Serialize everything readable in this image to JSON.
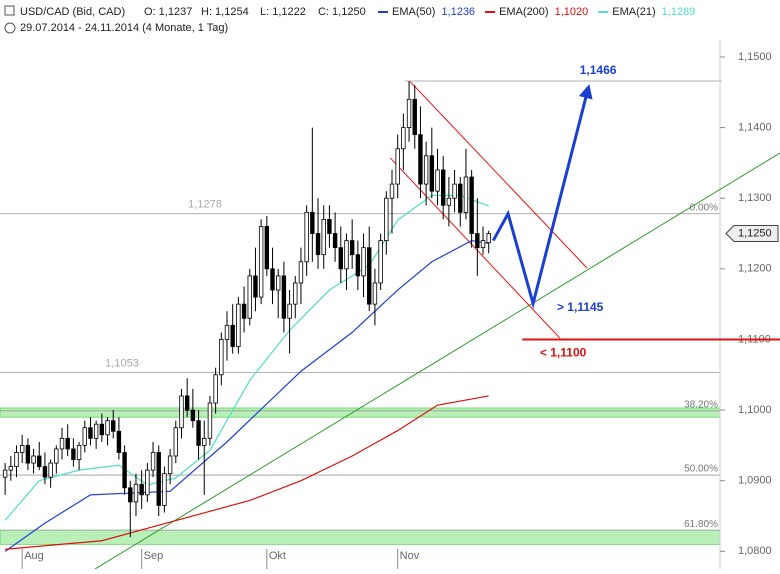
{
  "chart_data": {
    "type": "candlestick",
    "header": {
      "symbol": "USD/CAD (Bid, CAD)",
      "open": "O: 1,1237",
      "high": "H: 1,1254",
      "low": "L: 1,1222",
      "close": "C: 1,1250",
      "period": "29.07.2014 - 24.11.2014 (4 Monate, 1 Tag)"
    },
    "xlim": [
      -0.9,
      136.2
    ],
    "ylim": [
      1.0775,
      1.1524
    ],
    "xticks": [
      {
        "value": 3,
        "label": "Aug"
      },
      {
        "value": 24,
        "label": "Sep"
      },
      {
        "value": 46,
        "label": "Okt"
      },
      {
        "value": 69,
        "label": "Nov"
      }
    ],
    "yticks": [
      {
        "value": 1.15,
        "label": "1,1500"
      },
      {
        "value": 1.14,
        "label": "1,1400"
      },
      {
        "value": 1.13,
        "label": "1,1300"
      },
      {
        "value": 1.12,
        "label": "1,1200"
      },
      {
        "value": 1.11,
        "label": "1,1100"
      },
      {
        "value": 1.1,
        "label": "1,1000"
      },
      {
        "value": 1.09,
        "label": "1,0900"
      },
      {
        "value": 1.08,
        "label": "1,0800"
      }
    ],
    "candles": [
      [
        1.0905,
        1.0925,
        1.088,
        1.0915
      ],
      [
        1.0915,
        1.0935,
        1.09,
        1.092
      ],
      [
        1.092,
        1.095,
        1.0905,
        1.094
      ],
      [
        1.094,
        1.0965,
        1.0925,
        1.095
      ],
      [
        1.095,
        1.096,
        1.0915,
        1.0925
      ],
      [
        1.0925,
        1.0945,
        1.091,
        1.0935
      ],
      [
        1.0935,
        1.0955,
        1.0915,
        1.092
      ],
      [
        1.092,
        1.094,
        1.0895,
        1.0905
      ],
      [
        1.0905,
        1.093,
        1.089,
        1.0925
      ],
      [
        1.0925,
        1.095,
        1.091,
        1.0945
      ],
      [
        1.0945,
        1.0975,
        1.093,
        1.096
      ],
      [
        1.096,
        1.098,
        1.0935,
        1.0945
      ],
      [
        1.0945,
        1.096,
        1.092,
        1.093
      ],
      [
        1.093,
        1.0955,
        1.0915,
        1.095
      ],
      [
        1.095,
        1.0985,
        1.094,
        1.0975
      ],
      [
        1.0975,
        1.099,
        1.095,
        1.096
      ],
      [
        1.096,
        1.0985,
        1.0945,
        1.098
      ],
      [
        1.098,
        1.0995,
        1.0955,
        1.0965
      ],
      [
        1.0965,
        1.099,
        1.095,
        1.0985
      ],
      [
        1.0985,
        1.1,
        1.096,
        1.097
      ],
      [
        1.097,
        1.099,
        1.093,
        1.094
      ],
      [
        1.094,
        1.095,
        1.088,
        1.089
      ],
      [
        1.089,
        1.09,
        1.082,
        1.087
      ],
      [
        1.087,
        1.091,
        1.085,
        1.0895
      ],
      [
        1.0895,
        1.0915,
        1.086,
        1.088
      ],
      [
        1.088,
        1.0925,
        1.087,
        1.0915
      ],
      [
        1.0915,
        1.0955,
        1.0905,
        1.094
      ],
      [
        1.094,
        1.095,
        1.085,
        1.0865
      ],
      [
        1.0865,
        1.092,
        1.0855,
        1.091
      ],
      [
        1.091,
        1.0945,
        1.0895,
        1.0935
      ],
      [
        1.0935,
        1.0985,
        1.0925,
        1.0975
      ],
      [
        1.0975,
        1.103,
        1.096,
        1.102
      ],
      [
        1.102,
        1.1045,
        1.099,
        1.1
      ],
      [
        1.1,
        1.103,
        1.0975,
        1.0985
      ],
      [
        1.0985,
        1.1,
        1.093,
        1.095
      ],
      [
        1.095,
        1.0985,
        1.088,
        1.096
      ],
      [
        1.096,
        1.102,
        1.095,
        1.101
      ],
      [
        1.101,
        1.106,
        1.0995,
        1.105
      ],
      [
        1.105,
        1.111,
        1.1035,
        1.11
      ],
      [
        1.11,
        1.114,
        1.107,
        1.112
      ],
      [
        1.112,
        1.115,
        1.108,
        1.109
      ],
      [
        1.109,
        1.116,
        1.108,
        1.115
      ],
      [
        1.115,
        1.1175,
        1.111,
        1.113
      ],
      [
        1.113,
        1.12,
        1.112,
        1.119
      ],
      [
        1.119,
        1.123,
        1.114,
        1.116
      ],
      [
        1.116,
        1.127,
        1.115,
        1.126
      ],
      [
        1.126,
        1.1275,
        1.119,
        1.12
      ],
      [
        1.12,
        1.123,
        1.115,
        1.117
      ],
      [
        1.117,
        1.12,
        1.113,
        1.119
      ],
      [
        1.119,
        1.121,
        1.111,
        1.113
      ],
      [
        1.113,
        1.117,
        1.108,
        1.115
      ],
      [
        1.115,
        1.119,
        1.113,
        1.118
      ],
      [
        1.118,
        1.123,
        1.115,
        1.121
      ],
      [
        1.121,
        1.129,
        1.119,
        1.128
      ],
      [
        1.128,
        1.14,
        1.121,
        1.125
      ],
      [
        1.125,
        1.13,
        1.12,
        1.122
      ],
      [
        1.122,
        1.129,
        1.12,
        1.127
      ],
      [
        1.127,
        1.129,
        1.123,
        1.125
      ],
      [
        1.125,
        1.128,
        1.121,
        1.123
      ],
      [
        1.123,
        1.126,
        1.118,
        1.12
      ],
      [
        1.12,
        1.125,
        1.117,
        1.124
      ],
      [
        1.124,
        1.127,
        1.12,
        1.122
      ],
      [
        1.122,
        1.124,
        1.117,
        1.119
      ],
      [
        1.119,
        1.125,
        1.116,
        1.123
      ],
      [
        1.123,
        1.126,
        1.114,
        1.115
      ],
      [
        1.115,
        1.12,
        1.112,
        1.118
      ],
      [
        1.118,
        1.125,
        1.117,
        1.124
      ],
      [
        1.124,
        1.131,
        1.122,
        1.13
      ],
      [
        1.13,
        1.134,
        1.125,
        1.132
      ],
      [
        1.132,
        1.139,
        1.13,
        1.137
      ],
      [
        1.137,
        1.142,
        1.134,
        1.14
      ],
      [
        1.14,
        1.1466,
        1.138,
        1.144
      ],
      [
        1.144,
        1.146,
        1.137,
        1.139
      ],
      [
        1.139,
        1.143,
        1.13,
        1.132
      ],
      [
        1.132,
        1.138,
        1.129,
        1.136
      ],
      [
        1.136,
        1.14,
        1.13,
        1.131
      ],
      [
        1.131,
        1.137,
        1.129,
        1.134
      ],
      [
        1.134,
        1.136,
        1.127,
        1.129
      ],
      [
        1.129,
        1.133,
        1.126,
        1.13
      ],
      [
        1.13,
        1.134,
        1.128,
        1.132
      ],
      [
        1.132,
        1.133,
        1.126,
        1.128
      ],
      [
        1.128,
        1.137,
        1.127,
        1.133
      ],
      [
        1.133,
        1.134,
        1.123,
        1.125
      ],
      [
        1.125,
        1.13,
        1.119,
        1.123
      ],
      [
        1.123,
        1.126,
        1.122,
        1.124
      ],
      [
        1.1237,
        1.1254,
        1.1222,
        1.125
      ]
    ],
    "candle_colors": {
      "up": "#ffffff",
      "down": "#000000",
      "outline": "#000000"
    },
    "series": [
      {
        "name": "EMA(50)",
        "value_label": "1,1236",
        "color": "#1f3fd8",
        "x": [
          0,
          7,
          15,
          29,
          39,
          52,
          61,
          69,
          75,
          82,
          85
        ],
        "values": [
          1.08,
          1.084,
          1.088,
          1.0885,
          1.0955,
          1.1055,
          1.111,
          1.117,
          1.121,
          1.124,
          1.1236
        ]
      },
      {
        "name": "EMA(200)",
        "value_label": "1,1020",
        "color": "#e01010",
        "x": [
          0,
          17,
          27,
          43,
          52,
          61,
          69,
          76,
          85
        ],
        "values": [
          1.0803,
          1.0815,
          1.0837,
          1.0872,
          1.09,
          1.0935,
          1.0971,
          1.1007,
          1.102
        ]
      },
      {
        "name": "EMA(21)",
        "value_label": "1,1289",
        "color": "#4fe0c8",
        "x": [
          0,
          6,
          13,
          20,
          25,
          30,
          36,
          43,
          50,
          57,
          64,
          69,
          75,
          80,
          85
        ],
        "values": [
          1.0844,
          1.09,
          1.0915,
          1.0922,
          1.0894,
          1.0904,
          1.0943,
          1.1042,
          1.1113,
          1.117,
          1.1205,
          1.1269,
          1.1304,
          1.1304,
          1.1289
        ]
      }
    ],
    "hlines": [
      {
        "value": 1.1278,
        "label": "1,1278",
        "fib": "0.00%"
      },
      {
        "value": 1.1053,
        "label": "1,1053"
      },
      {
        "value": 1.0999,
        "fib": "38.20%"
      },
      {
        "value": 1.0908,
        "fib": "50.00%"
      },
      {
        "value": 1.083,
        "fib": "61.80%"
      }
    ],
    "zones": [
      [
        1.099,
        1.1003
      ],
      [
        1.081,
        1.083
      ]
    ],
    "zone_color": "#b8f0b8",
    "trendlines": [
      {
        "color": "#2a9a2a",
        "x": [
          15.8,
          136.2
        ],
        "values": [
          1.0775,
          1.1364
        ]
      },
      {
        "color": "#f01010",
        "x": [
          71.2,
          102.3
        ],
        "values": [
          1.1465,
          1.1201
        ]
      },
      {
        "color": "#f01010",
        "x": [
          67.7,
          97.5
        ],
        "values": [
          1.1357,
          1.1102
        ]
      }
    ],
    "projection": {
      "color": "#1a3fd1",
      "x": [
        85.8,
        88.4,
        92.8,
        102.5
      ],
      "values": [
        1.124,
        1.1278,
        1.1151,
        1.1456
      ]
    },
    "targets": [
      {
        "value": 1.1466,
        "label": "1,1466",
        "color": "#1a3fd1",
        "x": 101
      },
      {
        "value": 1.1145,
        "label": "> 1,1145",
        "color": "#1a3fd1",
        "x": 97
      },
      {
        "value": 1.11,
        "label": "< 1,1100",
        "color": "#e01010",
        "x": 94
      }
    ],
    "target_line": {
      "value": 1.11,
      "x": [
        90.9,
        136.2
      ],
      "color": "#e01010"
    },
    "top_line": {
      "value": 1.1466,
      "x": [
        70.3,
        126
      ]
    },
    "last_price": {
      "value": 1.125,
      "label": "1,1250"
    }
  }
}
